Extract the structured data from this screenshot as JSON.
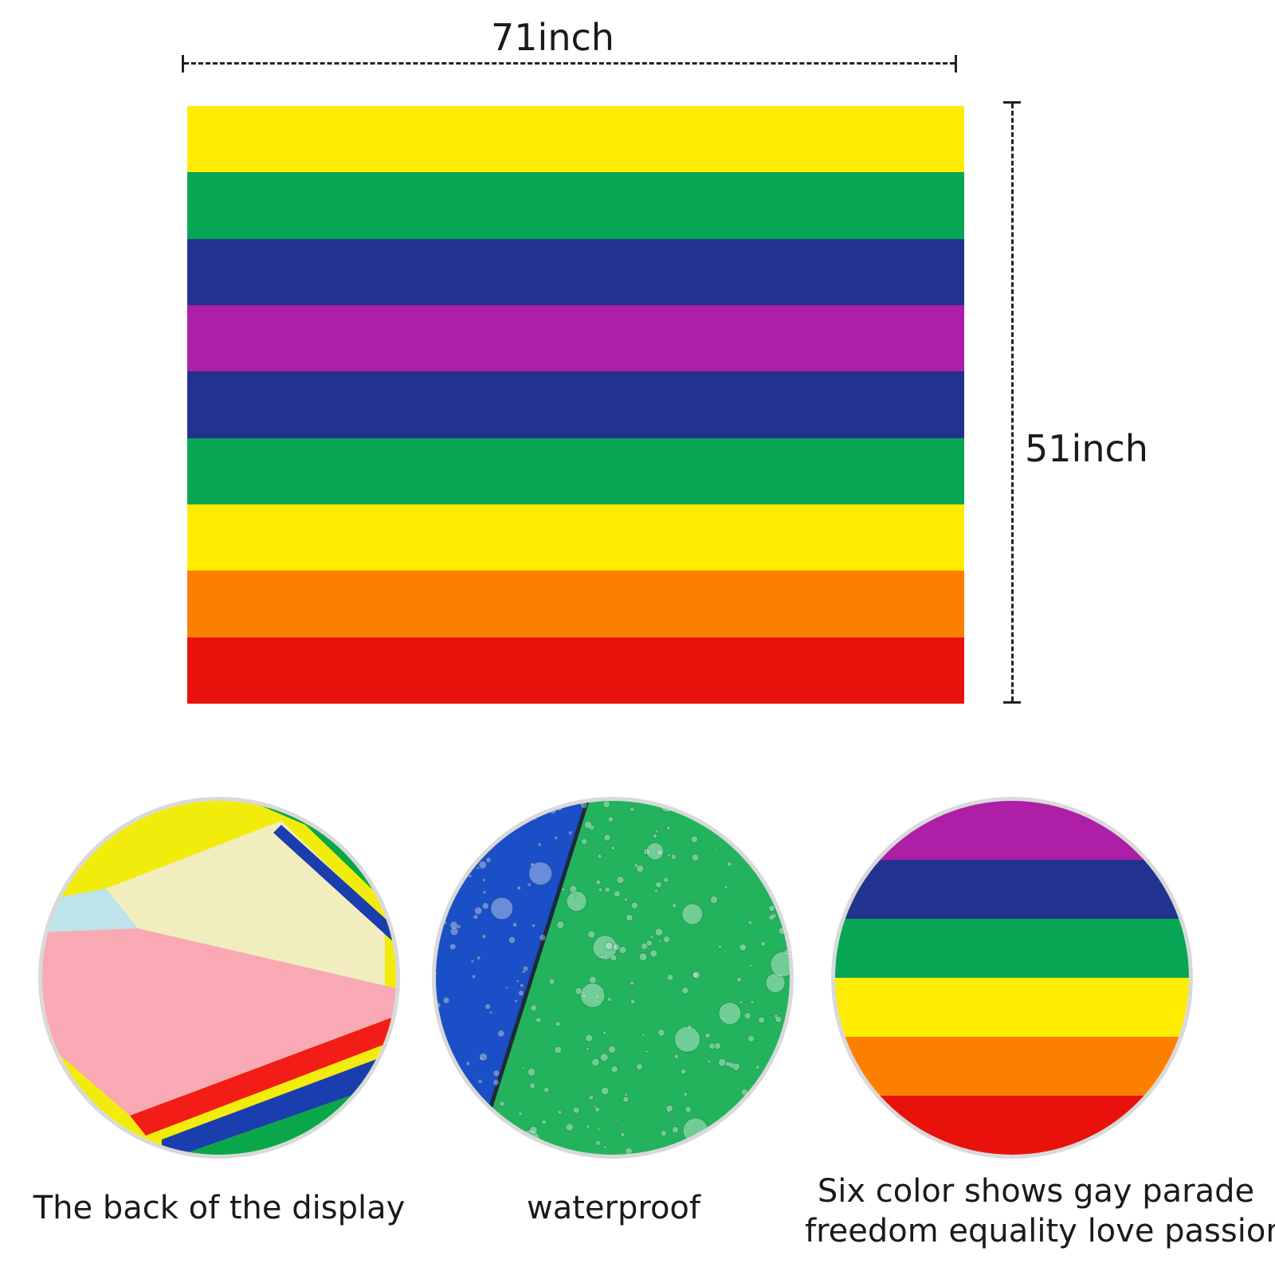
{
  "dimensions": {
    "width_label": "71inch",
    "height_label": "51inch"
  },
  "flag": {
    "stripes": [
      "#ffec00",
      "#06a655",
      "#22338f",
      "#ac1fa6",
      "#22338f",
      "#06a655",
      "#ffec00",
      "#fd7f00",
      "#e8110c"
    ]
  },
  "details": {
    "back": {
      "caption": "The back of the display",
      "colors": [
        "#f2ec0c",
        "#0aa64a",
        "#f1edbf",
        "#bfe3ea",
        "#f8a9b4",
        "#f21d16",
        "#1b3eaf"
      ]
    },
    "waterproof": {
      "caption": "waterproof",
      "colors": [
        "#1b4fc8",
        "#22b35c"
      ]
    },
    "stripes": {
      "caption_line1": "Six color shows gay parade",
      "caption_line2": "freedom equality love passion",
      "stripes": [
        "#ac1fa6",
        "#22338f",
        "#06a655",
        "#ffec00",
        "#fd7f00",
        "#e8110c"
      ]
    }
  }
}
